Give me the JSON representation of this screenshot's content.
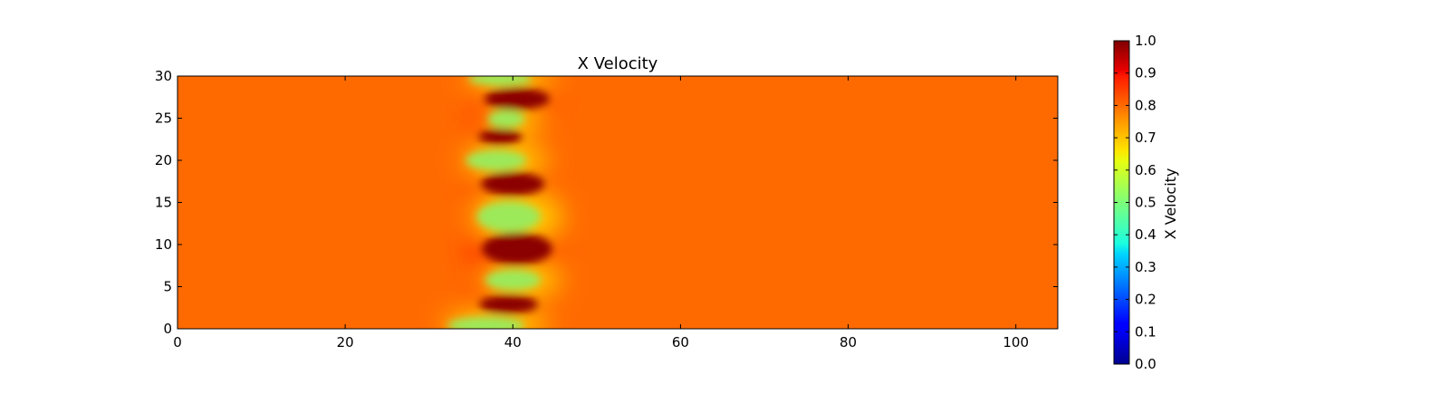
{
  "chart_data": {
    "type": "heatmap",
    "title": "X Velocity",
    "xlabel": "",
    "ylabel": "",
    "xlim": [
      0,
      105
    ],
    "ylim": [
      0,
      30
    ],
    "x_ticks": [
      0,
      20,
      40,
      60,
      80,
      100
    ],
    "y_ticks": [
      0,
      5,
      10,
      15,
      20,
      25,
      30
    ],
    "background_value": 0.8,
    "colormap": "jet",
    "colorbar": {
      "label": "X Velocity",
      "range": [
        0.0,
        1.0
      ],
      "ticks": [
        "0.0",
        "0.1",
        "0.2",
        "0.3",
        "0.4",
        "0.5",
        "0.6",
        "0.7",
        "0.8",
        "0.9",
        "1.0"
      ]
    },
    "features": [
      {
        "kind": "high",
        "x": 40.5,
        "y": 27.3,
        "rx": 3.9,
        "ry": 1.3,
        "value": 1.0
      },
      {
        "kind": "low",
        "x": 39.2,
        "y": 24.9,
        "rx": 2.2,
        "ry": 1.0,
        "value": 0.55
      },
      {
        "kind": "high",
        "x": 38.5,
        "y": 22.8,
        "rx": 2.6,
        "ry": 0.9,
        "value": 1.0
      },
      {
        "kind": "low",
        "x": 38.0,
        "y": 20.0,
        "rx": 3.6,
        "ry": 1.2,
        "value": 0.52
      },
      {
        "kind": "high",
        "x": 40.0,
        "y": 17.2,
        "rx": 3.8,
        "ry": 1.4,
        "value": 1.0
      },
      {
        "kind": "low",
        "x": 39.5,
        "y": 13.3,
        "rx": 3.8,
        "ry": 1.8,
        "value": 0.55
      },
      {
        "kind": "high",
        "x": 40.5,
        "y": 9.5,
        "rx": 4.2,
        "ry": 1.9,
        "value": 1.0
      },
      {
        "kind": "low",
        "x": 40.0,
        "y": 5.8,
        "rx": 3.3,
        "ry": 1.2,
        "value": 0.55
      },
      {
        "kind": "high",
        "x": 39.5,
        "y": 2.9,
        "rx": 3.5,
        "ry": 1.1,
        "value": 1.0
      },
      {
        "kind": "low",
        "x": 36.8,
        "y": 0.4,
        "rx": 4.6,
        "ry": 1.0,
        "value": 0.55
      },
      {
        "kind": "low",
        "x": 38.5,
        "y": 29.7,
        "rx": 3.8,
        "ry": 0.8,
        "value": 0.55
      }
    ],
    "colors": {
      "background": "#ff6a00",
      "high": "#8b0000",
      "low": "#9ce95a",
      "axis": "#000000"
    }
  }
}
